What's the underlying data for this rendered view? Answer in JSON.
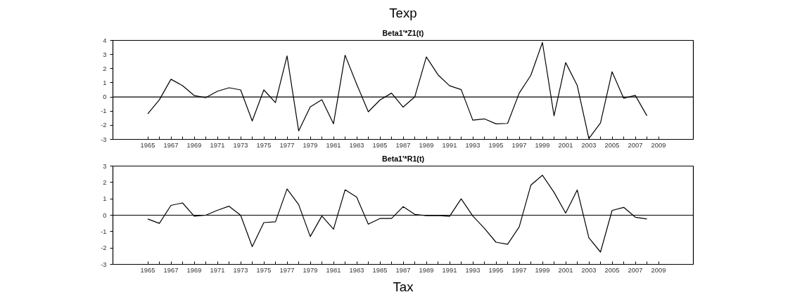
{
  "chart_data": [
    {
      "type": "line",
      "title": "Beta1'*Z1(t)",
      "annotations": [
        "Texp"
      ],
      "x": [
        1965,
        1966,
        1967,
        1968,
        1969,
        1970,
        1971,
        1972,
        1973,
        1974,
        1975,
        1976,
        1977,
        1978,
        1979,
        1980,
        1981,
        1982,
        1983,
        1984,
        1985,
        1986,
        1987,
        1988,
        1989,
        1990,
        1991,
        1992,
        1993,
        1994,
        1995,
        1996,
        1997,
        1998,
        1999,
        2000,
        2001,
        2002,
        2003,
        2004,
        2005,
        2006,
        2007,
        2008
      ],
      "series": [
        {
          "color": "#000000",
          "values": [
            -1.2,
            -0.2,
            1.25,
            0.8,
            0.1,
            -0.05,
            0.4,
            0.65,
            0.5,
            -1.7,
            0.5,
            -0.4,
            2.9,
            -2.4,
            -0.7,
            -0.2,
            -1.9,
            2.95,
            0.9,
            -1.05,
            -0.22,
            0.27,
            -0.72,
            0.0,
            2.83,
            1.57,
            0.79,
            0.52,
            -1.64,
            -1.55,
            -1.9,
            -1.87,
            0.27,
            1.53,
            3.85,
            -1.33,
            2.43,
            0.81,
            -2.94,
            -1.84,
            1.78,
            -0.09,
            0.11,
            -1.33
          ]
        }
      ],
      "xlim": [
        1962,
        2012
      ],
      "ylim": [
        -3,
        4
      ],
      "yticks": [
        -3,
        -2,
        -1,
        0,
        1,
        2,
        3,
        4
      ],
      "xticks": [
        1965,
        {
          "value": 1966,
          "label": null
        },
        1967,
        {
          "value": 1968,
          "label": null
        },
        1969,
        {
          "value": 1970,
          "label": null
        },
        1971,
        {
          "value": 1972,
          "label": null
        },
        1973,
        {
          "value": 1974,
          "label": null
        },
        1975,
        {
          "value": 1976,
          "label": null
        },
        1977,
        {
          "value": 1978,
          "label": null
        },
        1979,
        {
          "value": 1980,
          "label": null
        },
        1981,
        {
          "value": 1982,
          "label": null
        },
        1983,
        {
          "value": 1984,
          "label": null
        },
        1985,
        {
          "value": 1986,
          "label": null
        },
        1987,
        {
          "value": 1988,
          "label": null
        },
        1989,
        {
          "value": 1990,
          "label": null
        },
        1991,
        {
          "value": 1992,
          "label": null
        },
        1993,
        {
          "value": 1994,
          "label": null
        },
        1995,
        {
          "value": 1996,
          "label": null
        },
        1997,
        {
          "value": 1998,
          "label": null
        },
        1999,
        {
          "value": 2000,
          "label": null
        },
        2001,
        {
          "value": 2002,
          "label": null
        },
        2003,
        {
          "value": 2004,
          "label": null
        },
        2005,
        {
          "value": 2006,
          "label": null
        },
        2007,
        {
          "value": 2008,
          "label": null
        },
        2009
      ],
      "ref_lines": [
        {
          "axis": "y",
          "value": 0,
          "color": "#000000"
        }
      ],
      "grid": false,
      "marker": "none",
      "line_style": "solid"
    },
    {
      "type": "line",
      "title": "Beta1'*R1(t)",
      "annotations": [
        "Tax"
      ],
      "x": [
        1965,
        1966,
        1967,
        1968,
        1969,
        1970,
        1971,
        1972,
        1973,
        1974,
        1975,
        1976,
        1977,
        1978,
        1979,
        1980,
        1981,
        1982,
        1983,
        1984,
        1985,
        1986,
        1987,
        1988,
        1989,
        1990,
        1991,
        1992,
        1993,
        1994,
        1995,
        1996,
        1997,
        1998,
        1999,
        2000,
        2001,
        2002,
        2003,
        2004,
        2005,
        2006,
        2007,
        2008
      ],
      "series": [
        {
          "color": "#000000",
          "values": [
            -0.23,
            -0.5,
            0.6,
            0.75,
            -0.06,
            0.0,
            0.3,
            0.55,
            0.0,
            -1.92,
            -0.45,
            -0.4,
            1.6,
            0.65,
            -1.3,
            -0.05,
            -0.85,
            1.55,
            1.1,
            -0.55,
            -0.2,
            -0.2,
            0.52,
            0.05,
            -0.03,
            -0.02,
            -0.07,
            1.0,
            -0.05,
            -0.8,
            -1.65,
            -1.77,
            -0.71,
            1.83,
            2.44,
            1.4,
            0.13,
            1.54,
            -1.38,
            -2.25,
            0.29,
            0.48,
            -0.12,
            -0.23
          ]
        }
      ],
      "xlim": [
        1962,
        2012
      ],
      "ylim": [
        -3,
        3
      ],
      "yticks": [
        -3,
        -2,
        -1,
        0,
        1,
        2,
        3
      ],
      "xticks": [
        1965,
        {
          "value": 1966,
          "label": null
        },
        1967,
        {
          "value": 1968,
          "label": null
        },
        1969,
        {
          "value": 1970,
          "label": null
        },
        1971,
        {
          "value": 1972,
          "label": null
        },
        1973,
        {
          "value": 1974,
          "label": null
        },
        1975,
        {
          "value": 1976,
          "label": null
        },
        1977,
        {
          "value": 1978,
          "label": null
        },
        1979,
        {
          "value": 1980,
          "label": null
        },
        1981,
        {
          "value": 1982,
          "label": null
        },
        1983,
        {
          "value": 1984,
          "label": null
        },
        1985,
        {
          "value": 1986,
          "label": null
        },
        1987,
        {
          "value": 1988,
          "label": null
        },
        1989,
        {
          "value": 1990,
          "label": null
        },
        1991,
        {
          "value": 1992,
          "label": null
        },
        1993,
        {
          "value": 1994,
          "label": null
        },
        1995,
        {
          "value": 1996,
          "label": null
        },
        1997,
        {
          "value": 1998,
          "label": null
        },
        1999,
        {
          "value": 2000,
          "label": null
        },
        2001,
        {
          "value": 2002,
          "label": null
        },
        2003,
        {
          "value": 2004,
          "label": null
        },
        2005,
        {
          "value": 2006,
          "label": null
        },
        2007,
        {
          "value": 2008,
          "label": null
        },
        2009
      ],
      "ref_lines": [
        {
          "axis": "y",
          "value": 0,
          "color": "#000000"
        }
      ],
      "grid": false,
      "marker": "none",
      "line_style": "solid"
    }
  ]
}
